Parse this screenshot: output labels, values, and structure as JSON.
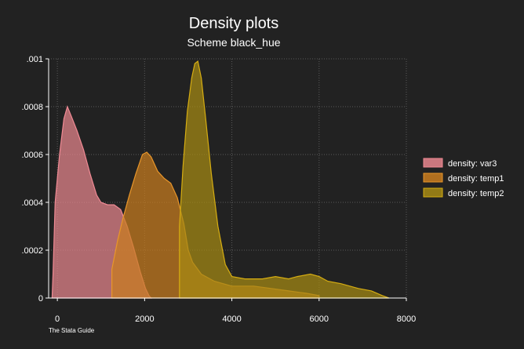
{
  "chart_data": {
    "type": "area",
    "title": "Density plots",
    "subtitle": "Scheme black_hue",
    "note": "The Stata Guide",
    "xlim": [
      -200,
      8000
    ],
    "ylim": [
      0,
      0.001
    ],
    "x_ticks": [
      0,
      2000,
      4000,
      6000,
      8000
    ],
    "x_tick_labels": [
      "0",
      "2000",
      "4000",
      "6000",
      "8000"
    ],
    "y_ticks": [
      0,
      0.0002,
      0.0004,
      0.0006,
      0.0008,
      0.001
    ],
    "y_tick_labels": [
      "0",
      ".0002",
      ".0004",
      ".0006",
      ".0008",
      ".001"
    ],
    "grid": true,
    "legend_position": "right",
    "series": [
      {
        "name": "density: var3",
        "fill": "#e8868e",
        "stroke": "#f08a94",
        "points": [
          [
            -120,
            0
          ],
          [
            -100,
            0.0001
          ],
          [
            -50,
            0.0004
          ],
          [
            50,
            0.0006
          ],
          [
            150,
            0.00075
          ],
          [
            230,
            0.0008
          ],
          [
            320,
            0.00076
          ],
          [
            450,
            0.0007
          ],
          [
            600,
            0.00062
          ],
          [
            750,
            0.00052
          ],
          [
            900,
            0.00043
          ],
          [
            1000,
            0.0004
          ],
          [
            1150,
            0.00039
          ],
          [
            1300,
            0.00039
          ],
          [
            1450,
            0.00037
          ],
          [
            1600,
            0.0003
          ],
          [
            1750,
            0.00021
          ],
          [
            1900,
            0.00011
          ],
          [
            2020,
            4e-05
          ],
          [
            2100,
            1e-05
          ],
          [
            2150,
            0
          ]
        ]
      },
      {
        "name": "density: temp1",
        "fill": "#c97d1e",
        "stroke": "#e8962a",
        "points": [
          [
            1250,
            0
          ],
          [
            1250,
            0.00012
          ],
          [
            1380,
            0.00024
          ],
          [
            1500,
            0.00033
          ],
          [
            1650,
            0.00043
          ],
          [
            1800,
            0.00052
          ],
          [
            1950,
            0.0006
          ],
          [
            2050,
            0.00061
          ],
          [
            2150,
            0.00059
          ],
          [
            2300,
            0.00053
          ],
          [
            2450,
            0.0005
          ],
          [
            2600,
            0.00048
          ],
          [
            2750,
            0.00042
          ],
          [
            2900,
            0.00031
          ],
          [
            3000,
            0.0002
          ],
          [
            3100,
            0.00015
          ],
          [
            3300,
            0.0001
          ],
          [
            3600,
            7e-05
          ],
          [
            4000,
            5e-05
          ],
          [
            4500,
            5e-05
          ],
          [
            4900,
            4e-05
          ],
          [
            5300,
            3e-05
          ],
          [
            5700,
            2e-05
          ],
          [
            6000,
            1e-05
          ],
          [
            6000,
            0
          ]
        ]
      },
      {
        "name": "density: temp2",
        "fill": "#a68a14",
        "stroke": "#d6ad12",
        "points": [
          [
            2800,
            0
          ],
          [
            2800,
            0.0003
          ],
          [
            2880,
            0.00055
          ],
          [
            2980,
            0.00078
          ],
          [
            3080,
            0.00092
          ],
          [
            3150,
            0.00098
          ],
          [
            3220,
            0.00099
          ],
          [
            3300,
            0.00092
          ],
          [
            3400,
            0.00075
          ],
          [
            3530,
            0.00052
          ],
          [
            3680,
            0.0003
          ],
          [
            3850,
            0.00014
          ],
          [
            4000,
            9e-05
          ],
          [
            4300,
            8e-05
          ],
          [
            4700,
            8e-05
          ],
          [
            5000,
            9e-05
          ],
          [
            5300,
            8e-05
          ],
          [
            5500,
            9e-05
          ],
          [
            5800,
            0.0001
          ],
          [
            6000,
            9e-05
          ],
          [
            6200,
            7e-05
          ],
          [
            6500,
            6e-05
          ],
          [
            6900,
            4e-05
          ],
          [
            7200,
            3e-05
          ],
          [
            7450,
            1e-05
          ],
          [
            7600,
            0
          ],
          [
            7600,
            0
          ]
        ]
      }
    ]
  }
}
